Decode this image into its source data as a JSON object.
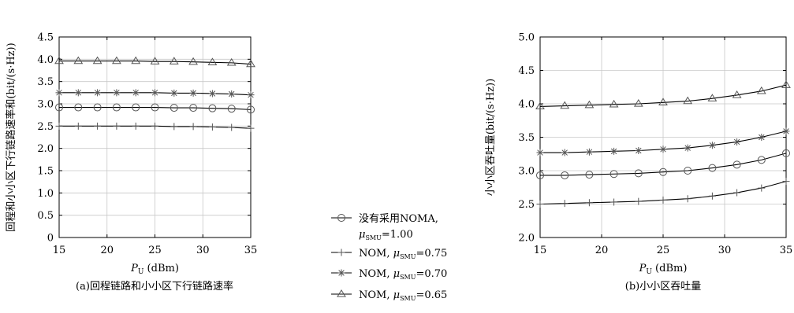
{
  "chart_data": [
    {
      "type": "line",
      "caption": "(a)回程链路和小小区下行链路速率",
      "ylabel": "回程和小小区下行链路速率和(bit/(s·Hz))",
      "xlabel_main": "P",
      "xlabel_sub": "U",
      "xlabel_unit": "(dBm)",
      "xlim": [
        15,
        35
      ],
      "ylim": [
        0,
        4.5
      ],
      "xticks": [
        "15",
        "20",
        "25",
        "30",
        "35"
      ],
      "yticks": [
        "0",
        "0.5",
        "1.0",
        "1.5",
        "2.0",
        "2.5",
        "3.0",
        "3.5",
        "4.0",
        "4.5"
      ],
      "grid": true,
      "x": [
        15,
        17,
        19,
        21,
        23,
        25,
        27,
        29,
        31,
        33,
        35
      ],
      "series": [
        {
          "marker": "triangle",
          "values": [
            3.96,
            3.96,
            3.96,
            3.96,
            3.96,
            3.95,
            3.95,
            3.94,
            3.93,
            3.92,
            3.89
          ]
        },
        {
          "marker": "star",
          "values": [
            3.25,
            3.25,
            3.25,
            3.25,
            3.25,
            3.25,
            3.24,
            3.24,
            3.23,
            3.22,
            3.2
          ]
        },
        {
          "marker": "circle",
          "values": [
            2.92,
            2.92,
            2.92,
            2.92,
            2.92,
            2.92,
            2.91,
            2.91,
            2.9,
            2.89,
            2.87
          ]
        },
        {
          "marker": "plus",
          "values": [
            2.5,
            2.5,
            2.5,
            2.5,
            2.5,
            2.5,
            2.49,
            2.49,
            2.48,
            2.47,
            2.45
          ]
        }
      ]
    },
    {
      "type": "line",
      "caption": "(b)小小区吞吐量",
      "ylabel": "小小区吞吐量(bit/(s·Hz))",
      "xlabel_main": "P",
      "xlabel_sub": "U",
      "xlabel_unit": "(dBm)",
      "xlim": [
        15,
        35
      ],
      "ylim": [
        2.0,
        5.0
      ],
      "xticks": [
        "15",
        "20",
        "25",
        "30",
        "35"
      ],
      "yticks": [
        "2.0",
        "2.5",
        "3.0",
        "3.5",
        "4.0",
        "4.5",
        "5.0"
      ],
      "grid": true,
      "x": [
        15,
        17,
        19,
        21,
        23,
        25,
        27,
        29,
        31,
        33,
        35
      ],
      "series": [
        {
          "marker": "triangle",
          "values": [
            3.96,
            3.97,
            3.98,
            3.99,
            4.0,
            4.02,
            4.04,
            4.08,
            4.13,
            4.19,
            4.28
          ]
        },
        {
          "marker": "star",
          "values": [
            3.27,
            3.27,
            3.28,
            3.29,
            3.3,
            3.32,
            3.34,
            3.38,
            3.43,
            3.5,
            3.59
          ]
        },
        {
          "marker": "circle",
          "values": [
            2.93,
            2.93,
            2.94,
            2.95,
            2.96,
            2.98,
            3.0,
            3.04,
            3.09,
            3.16,
            3.26
          ]
        },
        {
          "marker": "plus",
          "values": [
            2.5,
            2.51,
            2.52,
            2.53,
            2.54,
            2.56,
            2.58,
            2.62,
            2.67,
            2.74,
            2.84
          ]
        }
      ]
    }
  ],
  "legend": [
    {
      "marker": "circle",
      "label": "没有采用NOMA,",
      "mu_prefix": "",
      "mu_sub": "SMU",
      "mu_value": "=1.00"
    },
    {
      "marker": "plus",
      "label": "NOM,",
      "mu_sub": "SMU",
      "mu_value": "=0.75"
    },
    {
      "marker": "star",
      "label": "NOM,",
      "mu_sub": "SMU",
      "mu_value": "=0.70"
    },
    {
      "marker": "triangle",
      "label": "NOM,",
      "mu_sub": "SMU",
      "mu_value": "=0.65"
    }
  ],
  "colors": {
    "line": "#000000",
    "marker": "#555555",
    "grid": "#c8c8c8"
  }
}
